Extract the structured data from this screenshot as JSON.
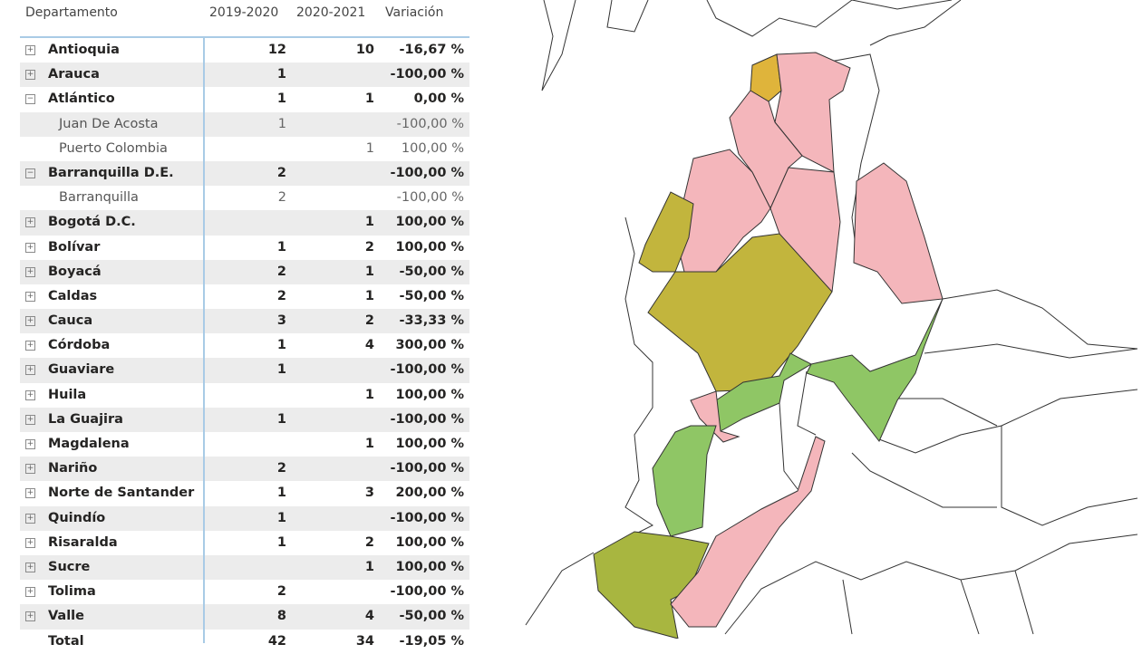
{
  "table": {
    "headers": [
      "Departamento",
      "2019-2020",
      "2020-2021",
      "Variación"
    ],
    "rows": [
      {
        "name": "Antioquia",
        "a": "12",
        "b": "10",
        "v": "-16,67 %",
        "level": 0,
        "expanded": false
      },
      {
        "name": "Arauca",
        "a": "1",
        "b": "",
        "v": "-100,00 %",
        "level": 0,
        "expanded": false
      },
      {
        "name": "Atlántico",
        "a": "1",
        "b": "1",
        "v": "0,00 %",
        "level": 0,
        "expanded": true
      },
      {
        "name": "Juan De Acosta",
        "a": "1",
        "b": "",
        "v": "-100,00 %",
        "level": 1
      },
      {
        "name": "Puerto Colombia",
        "a": "",
        "b": "1",
        "v": "100,00 %",
        "level": 1
      },
      {
        "name": "Barranquilla D.E.",
        "a": "2",
        "b": "",
        "v": "-100,00 %",
        "level": 0,
        "expanded": true
      },
      {
        "name": "Barranquilla",
        "a": "2",
        "b": "",
        "v": "-100,00 %",
        "level": 1
      },
      {
        "name": "Bogotá D.C.",
        "a": "",
        "b": "1",
        "v": "100,00 %",
        "level": 0,
        "expanded": false
      },
      {
        "name": "Bolívar",
        "a": "1",
        "b": "2",
        "v": "100,00 %",
        "level": 0,
        "expanded": false
      },
      {
        "name": "Boyacá",
        "a": "2",
        "b": "1",
        "v": "-50,00 %",
        "level": 0,
        "expanded": false
      },
      {
        "name": "Caldas",
        "a": "2",
        "b": "1",
        "v": "-50,00 %",
        "level": 0,
        "expanded": false
      },
      {
        "name": "Cauca",
        "a": "3",
        "b": "2",
        "v": "-33,33 %",
        "level": 0,
        "expanded": false
      },
      {
        "name": "Córdoba",
        "a": "1",
        "b": "4",
        "v": "300,00 %",
        "level": 0,
        "expanded": false
      },
      {
        "name": "Guaviare",
        "a": "1",
        "b": "",
        "v": "-100,00 %",
        "level": 0,
        "expanded": false
      },
      {
        "name": "Huila",
        "a": "",
        "b": "1",
        "v": "100,00 %",
        "level": 0,
        "expanded": false
      },
      {
        "name": "La Guajira",
        "a": "1",
        "b": "",
        "v": "-100,00 %",
        "level": 0,
        "expanded": false
      },
      {
        "name": "Magdalena",
        "a": "",
        "b": "1",
        "v": "100,00 %",
        "level": 0,
        "expanded": false
      },
      {
        "name": "Nariño",
        "a": "2",
        "b": "",
        "v": "-100,00 %",
        "level": 0,
        "expanded": false
      },
      {
        "name": "Norte de Santander",
        "a": "1",
        "b": "3",
        "v": "200,00 %",
        "level": 0,
        "expanded": false
      },
      {
        "name": "Quindío",
        "a": "1",
        "b": "",
        "v": "-100,00 %",
        "level": 0,
        "expanded": false
      },
      {
        "name": "Risaralda",
        "a": "1",
        "b": "2",
        "v": "100,00 %",
        "level": 0,
        "expanded": false
      },
      {
        "name": "Sucre",
        "a": "",
        "b": "1",
        "v": "100,00 %",
        "level": 0,
        "expanded": false
      },
      {
        "name": "Tolima",
        "a": "2",
        "b": "",
        "v": "-100,00 %",
        "level": 0,
        "expanded": false
      },
      {
        "name": "Valle",
        "a": "8",
        "b": "4",
        "v": "-50,00 %",
        "level": 0,
        "expanded": false
      }
    ],
    "total": {
      "name": "Total",
      "a": "42",
      "b": "34",
      "v": "-19,05 %"
    }
  },
  "map": {
    "colors": {
      "pink": "#f4b6bb",
      "olive": "#c2b53d",
      "gold": "#dfb43b",
      "green": "#8fc665",
      "yellowgreen": "#a8b640",
      "outline": "#333333"
    }
  }
}
